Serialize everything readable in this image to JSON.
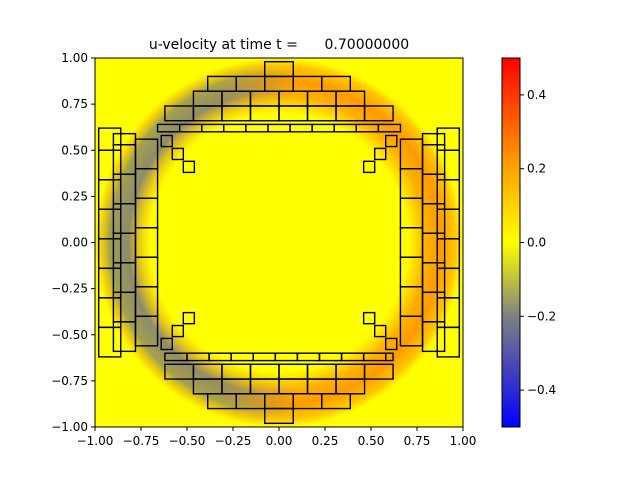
{
  "chart_data": {
    "type": "heatmap",
    "title": "u-velocity at time t =      0.70000000",
    "xlabel": "",
    "ylabel": "",
    "xlim": [
      -1.0,
      1.0
    ],
    "ylim": [
      -1.0,
      1.0
    ],
    "x_ticks": [
      -1.0,
      -0.75,
      -0.5,
      -0.25,
      0.0,
      0.25,
      0.5,
      0.75,
      1.0
    ],
    "x_tick_labels": [
      "−1.00",
      "−0.75",
      "−0.50",
      "−0.25",
      "0.00",
      "0.25",
      "0.50",
      "0.75",
      "1.00"
    ],
    "y_ticks": [
      1.0,
      0.75,
      0.5,
      0.25,
      0.0,
      -0.25,
      -0.5,
      -0.75,
      -1.0
    ],
    "y_tick_labels": [
      "1.00",
      "0.75",
      "0.50",
      "0.25",
      "0.00",
      "−0.25",
      "−0.50",
      "−0.75",
      "−1.00"
    ],
    "colorbar": {
      "range": [
        -0.5,
        0.5
      ],
      "ticks": [
        0.4,
        0.2,
        0.0,
        -0.2,
        -0.4
      ],
      "tick_labels": [
        "0.4",
        "0.2",
        "0.0",
        "−0.2",
        "−0.4"
      ],
      "colormap": [
        {
          "value": -0.5,
          "color": "#0000ff"
        },
        {
          "value": -0.2,
          "color": "#808080"
        },
        {
          "value": 0.0,
          "color": "#ffff00"
        },
        {
          "value": 0.2,
          "color": "#ffa500"
        },
        {
          "value": 0.5,
          "color": "#ff0000"
        }
      ]
    },
    "field": {
      "description": "ring-shaped u-velocity field",
      "ring_radius": 0.83,
      "ring_width": 0.14,
      "interior_value": 0.0,
      "ring_left_value": -0.2,
      "ring_right_value": 0.18,
      "outer_value": 0.02
    },
    "mesh_overlay": true
  },
  "colors": {
    "background": "#ffffff",
    "axes_edge": "#000000",
    "cell_edge": "#000000"
  }
}
